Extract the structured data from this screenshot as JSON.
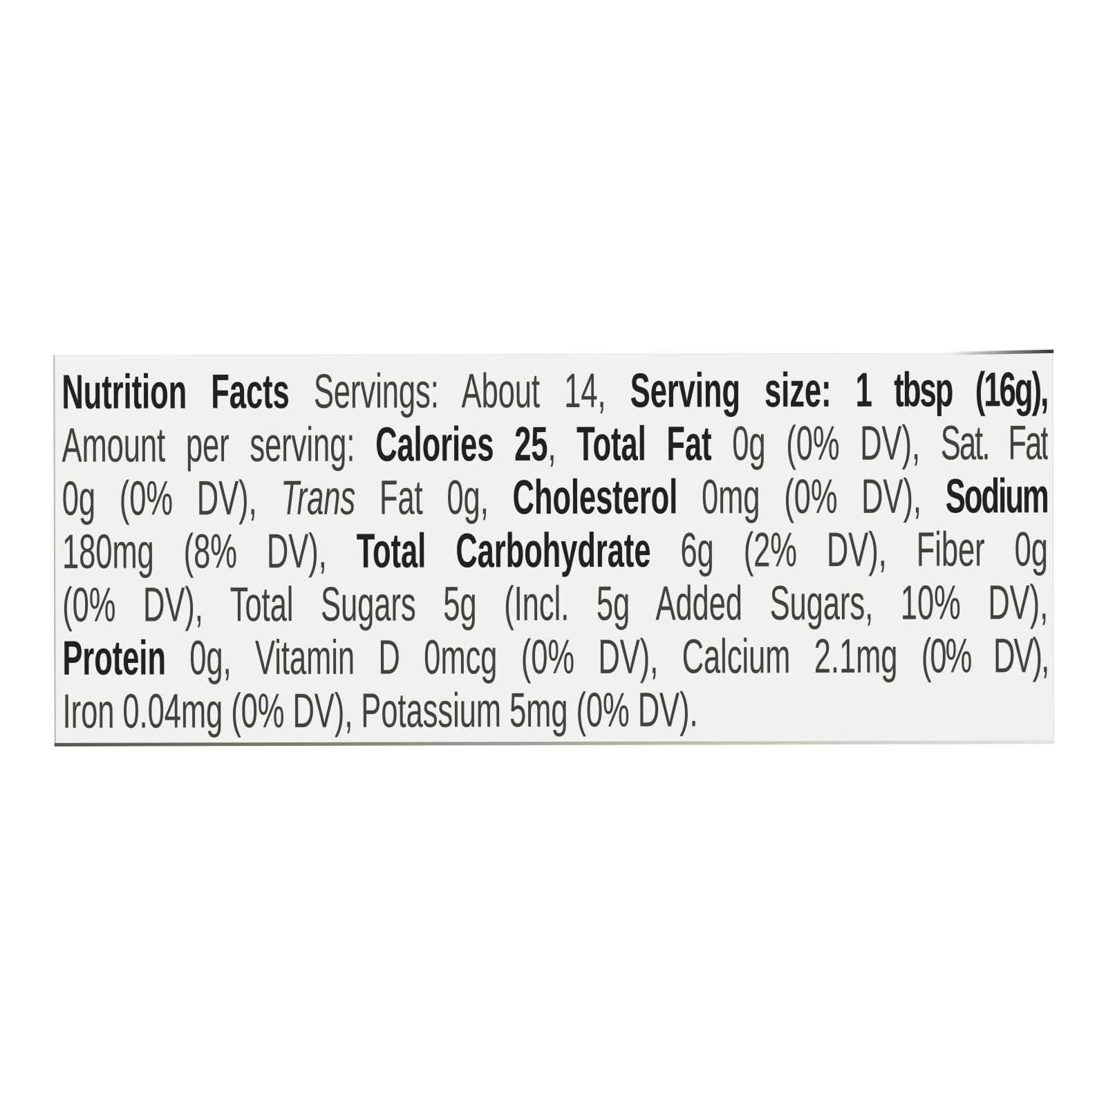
{
  "page": {
    "background_color": "#ffffff"
  },
  "label": {
    "panel_background_color": "#f2f1ef",
    "text_color": "#43413e",
    "bold_text_color": "#232120",
    "title": "Nutrition Facts",
    "servings": "About 14",
    "serving_size": "1 tbsp (16g)",
    "calories": "25",
    "nutrients": [
      {
        "name": "Total Fat",
        "amount": "0g",
        "dv": "0% DV"
      },
      {
        "name": "Sat. Fat",
        "amount": "0g",
        "dv": "0% DV"
      },
      {
        "name": "Trans Fat",
        "amount": "0g",
        "dv": ""
      },
      {
        "name": "Cholesterol",
        "amount": "0mg",
        "dv": "0% DV"
      },
      {
        "name": "Sodium",
        "amount": "180mg",
        "dv": "8% DV"
      },
      {
        "name": "Total Carbohydrate",
        "amount": "6g",
        "dv": "2% DV"
      },
      {
        "name": "Fiber",
        "amount": "0g",
        "dv": "0% DV"
      },
      {
        "name": "Total Sugars",
        "amount": "5g",
        "dv": ""
      },
      {
        "name": "Incl. Added Sugars",
        "amount": "5g",
        "dv": "10% DV"
      },
      {
        "name": "Protein",
        "amount": "0g",
        "dv": ""
      },
      {
        "name": "Vitamin D",
        "amount": "0mcg",
        "dv": "0% DV"
      },
      {
        "name": "Calcium",
        "amount": "2.1mg",
        "dv": "0% DV"
      },
      {
        "name": "Iron",
        "amount": "0.04mg",
        "dv": "0% DV"
      },
      {
        "name": "Potassium",
        "amount": "5mg",
        "dv": "0% DV"
      }
    ],
    "lines": [
      {
        "segments": [
          {
            "text": "Nutrition Facts",
            "style": "bold",
            "name": "nutrition-facts-title"
          },
          {
            "text": " Servings: About 14, ",
            "style": "regular"
          },
          {
            "text": "Serving size: ",
            "style": "bold"
          },
          {
            "text": "1 tbsp (16g),",
            "style": "bold-condensed"
          }
        ]
      },
      {
        "segments": [
          {
            "text": "Amount per serving: ",
            "style": "regular"
          },
          {
            "text": "Calories 25",
            "style": "bold"
          },
          {
            "text": ", ",
            "style": "regular"
          },
          {
            "text": "Total Fat",
            "style": "bold"
          },
          {
            "text": " 0g (0% DV), ",
            "style": "regular"
          },
          {
            "text": "Sat. Fat",
            "style": "regular-condensed"
          }
        ]
      },
      {
        "segments": [
          {
            "text": "0g (0% DV), ",
            "style": "regular"
          },
          {
            "text": "Trans",
            "style": "italic"
          },
          {
            "text": " Fat 0g, ",
            "style": "regular"
          },
          {
            "text": "Cholesterol",
            "style": "bold"
          },
          {
            "text": " 0mg (0% DV), ",
            "style": "regular"
          },
          {
            "text": "Sodium",
            "style": "bold-condensed"
          }
        ]
      },
      {
        "segments": [
          {
            "text": "180mg (8% DV), ",
            "style": "regular"
          },
          {
            "text": "Total Carbohydrate",
            "style": "bold"
          },
          {
            "text": " 6g (2% DV), Fiber 0g",
            "style": "regular"
          }
        ]
      },
      {
        "segments": [
          {
            "text": "(0% DV), Total Sugars 5g (Incl. 5g Added Sugars, 10% DV),",
            "style": "regular"
          }
        ]
      },
      {
        "segments": [
          {
            "text": "Protein",
            "style": "bold"
          },
          {
            "text": " 0g, Vitamin D 0mcg (0% DV), Calcium 2.1mg ",
            "style": "regular"
          },
          {
            "text": "(0% DV),",
            "style": "regular-condensed"
          }
        ]
      },
      {
        "segments": [
          {
            "text": "Iron 0.04mg (0% DV), Potassium 5mg (0% DV).",
            "style": "regular"
          }
        ]
      }
    ]
  }
}
